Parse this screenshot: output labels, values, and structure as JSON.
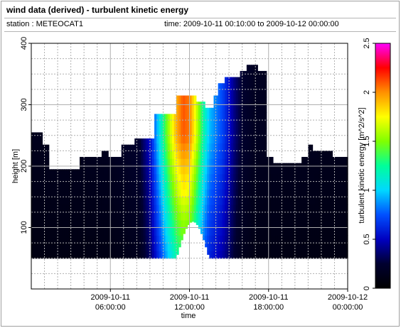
{
  "header": {
    "title": "wind data (derived) - turbulent kinetic energy",
    "station": "station : METEOCAT1",
    "time_range": "time: 2009-10-11 00:10:00 to 2009-10-12 00:00:00"
  },
  "chart_data": {
    "type": "heatmap",
    "xlabel": "time",
    "ylabel": "height [m]",
    "colorbar_label": "turbulent kinetic energy [m^2/s^2]",
    "x_range_hours": [
      0,
      24
    ],
    "ylim": [
      0,
      400
    ],
    "clim": [
      0,
      2.5
    ],
    "grid": true,
    "x_ticks": [
      {
        "hour": 6,
        "line1": "2009-10-11",
        "line2": "06:00:00"
      },
      {
        "hour": 12,
        "line1": "2009-10-11",
        "line2": "12:00:00"
      },
      {
        "hour": 18,
        "line1": "2009-10-11",
        "line2": "18:00:00"
      },
      {
        "hour": 24,
        "line1": "2009-10-12",
        "line2": "00:00:00"
      }
    ],
    "y_ticks": [
      "100",
      "200",
      "300",
      "400"
    ],
    "colorbar_ticks": [
      "0",
      "0.5",
      "1",
      "1.5",
      "2",
      "2.5"
    ],
    "colormap": [
      "#000000",
      "#000030",
      "#0000c0",
      "#0050ff",
      "#00d8ff",
      "#00ff9a",
      "#80ff00",
      "#ffff00",
      "#ff9000",
      "#ff0000",
      "#ff00ff"
    ],
    "min_height": 50,
    "top_height_profile": [
      [
        0,
        255
      ],
      [
        0.7,
        255
      ],
      [
        0.8,
        235
      ],
      [
        1.2,
        235
      ],
      [
        1.3,
        195
      ],
      [
        3.5,
        195
      ],
      [
        3.6,
        215
      ],
      [
        5.2,
        215
      ],
      [
        5.3,
        225
      ],
      [
        5.7,
        225
      ],
      [
        5.8,
        215
      ],
      [
        6.7,
        215
      ],
      [
        6.8,
        235
      ],
      [
        7.7,
        235
      ],
      [
        7.8,
        245
      ],
      [
        9.3,
        245
      ],
      [
        9.4,
        285
      ],
      [
        10.9,
        285
      ],
      [
        11.0,
        315
      ],
      [
        12.4,
        315
      ],
      [
        12.5,
        305
      ],
      [
        13.0,
        305
      ],
      [
        13.1,
        295
      ],
      [
        13.7,
        295
      ],
      [
        13.8,
        315
      ],
      [
        14.1,
        315
      ],
      [
        14.2,
        335
      ],
      [
        14.5,
        335
      ],
      [
        14.6,
        345
      ],
      [
        15.7,
        345
      ],
      [
        15.8,
        355
      ],
      [
        16.3,
        355
      ],
      [
        16.4,
        365
      ],
      [
        17.0,
        365
      ],
      [
        17.1,
        355
      ],
      [
        17.7,
        355
      ],
      [
        17.8,
        215
      ],
      [
        18.2,
        215
      ],
      [
        18.3,
        205
      ],
      [
        20.4,
        205
      ],
      [
        20.5,
        215
      ],
      [
        20.9,
        215
      ],
      [
        21.0,
        235
      ],
      [
        21.3,
        235
      ],
      [
        21.4,
        225
      ],
      [
        22.8,
        225
      ],
      [
        22.9,
        215
      ],
      [
        24,
        215
      ]
    ],
    "energy_profile": [
      [
        0,
        0.12
      ],
      [
        6,
        0.14
      ],
      [
        8.2,
        0.2
      ],
      [
        9.0,
        0.45
      ],
      [
        9.5,
        0.75
      ],
      [
        10.0,
        1.05
      ],
      [
        10.5,
        1.35
      ],
      [
        11.0,
        1.6
      ],
      [
        11.5,
        1.75
      ],
      [
        12.0,
        1.7
      ],
      [
        12.5,
        1.4
      ],
      [
        13.0,
        1.05
      ],
      [
        13.5,
        0.8
      ],
      [
        14.0,
        0.7
      ],
      [
        14.5,
        0.6
      ],
      [
        15.0,
        0.45
      ],
      [
        15.5,
        0.3
      ],
      [
        16.0,
        0.2
      ],
      [
        17.0,
        0.14
      ],
      [
        24,
        0.12
      ]
    ],
    "peak_energy": 2.1
  }
}
